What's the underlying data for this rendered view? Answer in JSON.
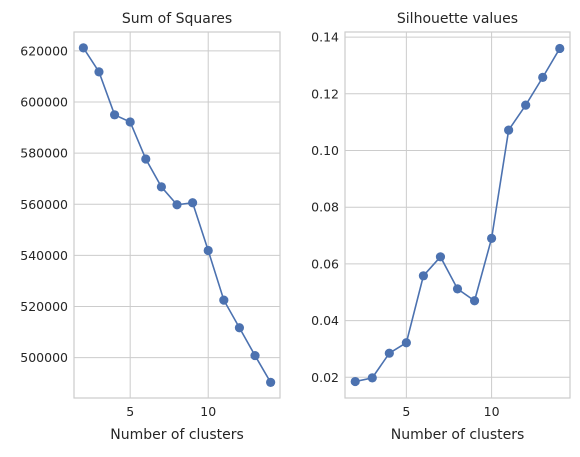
{
  "chart_data": [
    {
      "type": "line",
      "title": "Sum of Squares",
      "xlabel": "Number of clusters",
      "ylabel": "",
      "x": [
        2,
        3,
        4,
        5,
        6,
        7,
        8,
        9,
        10,
        11,
        12,
        13,
        14
      ],
      "series": [
        {
          "values": [
            621200,
            611800,
            595000,
            592200,
            577700,
            566800,
            559800,
            560600,
            541900,
            522500,
            511700,
            500800,
            490300
          ]
        }
      ],
      "xlim": [
        1.4,
        14.6
      ],
      "ylim": [
        484200,
        627400
      ],
      "xticks": [
        5,
        10
      ],
      "yticks": [
        500000,
        520000,
        540000,
        560000,
        580000,
        600000,
        620000
      ],
      "grid": true,
      "color": "#4c72b0"
    },
    {
      "type": "line",
      "title": "Silhouette values",
      "xlabel": "Number of clusters",
      "ylabel": "",
      "x": [
        2,
        3,
        4,
        5,
        6,
        7,
        8,
        9,
        10,
        11,
        12,
        13,
        14
      ],
      "series": [
        {
          "values": [
            0.0185,
            0.0198,
            0.0285,
            0.0322,
            0.0558,
            0.0625,
            0.0512,
            0.047,
            0.069,
            0.1072,
            0.116,
            0.1258,
            0.136
          ]
        }
      ],
      "xlim": [
        1.4,
        14.6
      ],
      "ylim": [
        0.0127,
        0.1418
      ],
      "xticks": [
        5,
        10
      ],
      "yticks": [
        0.02,
        0.04,
        0.06,
        0.08,
        0.1,
        0.12,
        0.14
      ],
      "ytick_labels": [
        "0.02",
        "0.04",
        "0.06",
        "0.08",
        "0.10",
        "0.12",
        "0.14"
      ],
      "grid": true,
      "color": "#4c72b0"
    }
  ]
}
